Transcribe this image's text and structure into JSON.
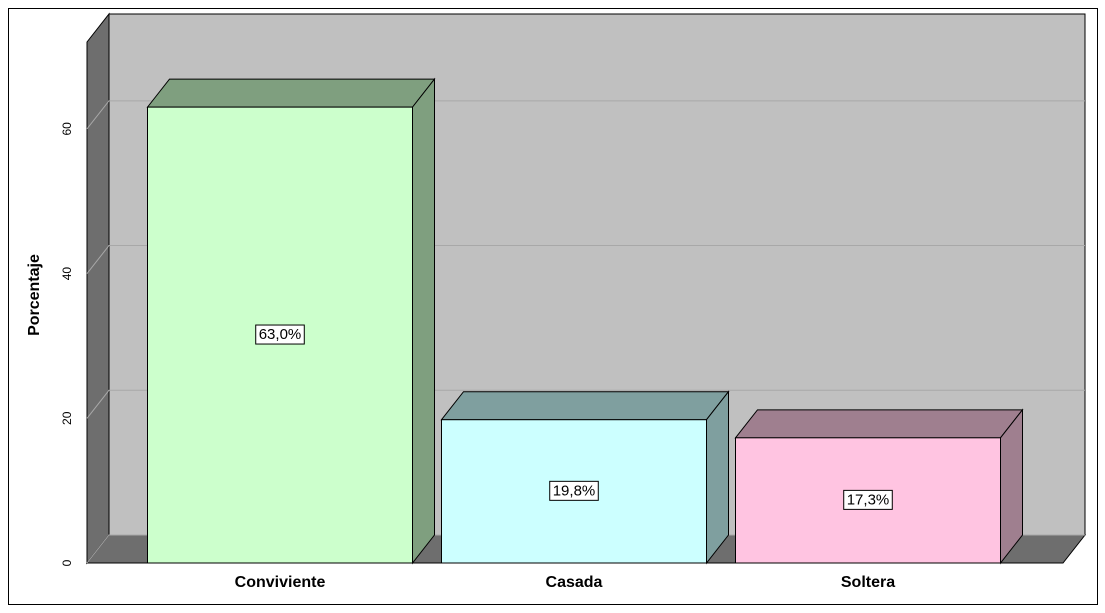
{
  "chart_data": {
    "type": "bar",
    "y_label": "Porcentaje",
    "categories": [
      "Conviviente",
      "Casada",
      "Soltera"
    ],
    "values": [
      63.0,
      19.8,
      17.3
    ],
    "value_labels": [
      "63,0%",
      "19,8%",
      "17,3%"
    ],
    "colors": [
      {
        "front": "#ccffcc",
        "side": "#7f9f7f"
      },
      {
        "front": "#ccffff",
        "side": "#7f9f9f"
      },
      {
        "front": "#ffc4e1",
        "side": "#9f7f8f"
      }
    ],
    "ylim": [
      0,
      72
    ],
    "yticks": [
      0,
      20,
      40,
      60
    ],
    "grid": true
  }
}
